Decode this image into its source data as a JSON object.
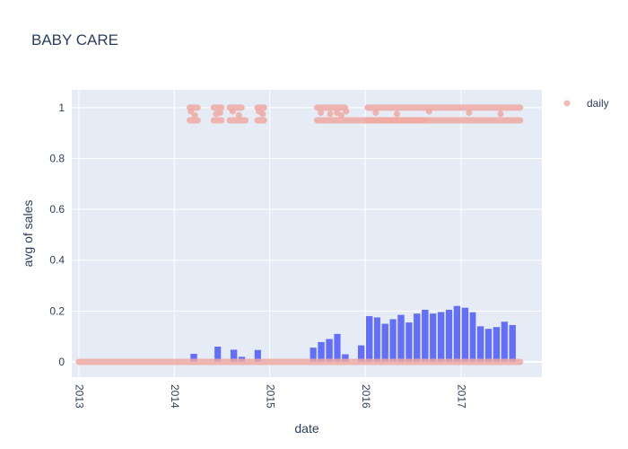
{
  "chart_data": {
    "type": "bar",
    "title": "BABY CARE",
    "xlabel": "date",
    "ylabel": "avg of sales",
    "ylim": [
      -0.06,
      1.07
    ],
    "xlim": [
      "2012-12-05",
      "2017-11-06"
    ],
    "y_ticks": [
      "0",
      "0.2",
      "0.4",
      "0.6",
      "0.8",
      "1"
    ],
    "x_ticks": [
      {
        "date": "2013-01-01",
        "label": "2013"
      },
      {
        "date": "2014-01-01",
        "label": "2014"
      },
      {
        "date": "2015-01-01",
        "label": "2015"
      },
      {
        "date": "2016-01-01",
        "label": "2016"
      },
      {
        "date": "2017-01-01",
        "label": "2017"
      }
    ],
    "legend": {
      "position": "top-right",
      "entries": [
        "daily"
      ]
    },
    "grid": true,
    "colors": {
      "bar": "#636efa",
      "scatter": "#efa9a2",
      "plot_bg": "#e5ecf6",
      "text": "#2a3f5f"
    },
    "series": [
      {
        "type": "bar",
        "x": [
          "2013-01",
          "2013-02",
          "2013-03",
          "2013-04",
          "2013-05",
          "2013-06",
          "2013-07",
          "2013-08",
          "2013-09",
          "2013-10",
          "2013-11",
          "2013-12",
          "2014-01",
          "2014-02",
          "2014-03",
          "2014-04",
          "2014-05",
          "2014-06",
          "2014-07",
          "2014-08",
          "2014-09",
          "2014-10",
          "2014-11",
          "2014-12",
          "2015-01",
          "2015-02",
          "2015-03",
          "2015-04",
          "2015-05",
          "2015-06",
          "2015-07",
          "2015-08",
          "2015-09",
          "2015-10",
          "2015-11",
          "2015-12",
          "2016-01",
          "2016-02",
          "2016-03",
          "2016-04",
          "2016-05",
          "2016-06",
          "2016-07",
          "2016-08",
          "2016-09",
          "2016-10",
          "2016-11",
          "2016-12",
          "2017-01",
          "2017-02",
          "2017-03",
          "2017-04",
          "2017-05",
          "2017-06",
          "2017-07",
          "2017-08"
        ],
        "values": [
          0,
          0,
          0,
          0,
          0,
          0,
          0,
          0,
          0,
          0,
          0,
          0,
          0,
          0,
          0.032,
          0,
          0,
          0.06,
          0,
          0.048,
          0.02,
          0,
          0.047,
          0,
          0,
          0,
          0,
          0,
          0,
          0.056,
          0.078,
          0.09,
          0.11,
          0.03,
          0,
          0.065,
          0.18,
          0.175,
          0.15,
          0.168,
          0.185,
          0.155,
          0.19,
          0.205,
          0.19,
          0.196,
          0.205,
          0.22,
          0.213,
          0.195,
          0.14,
          0.13,
          0.137,
          0.158,
          0.145,
          0
        ]
      },
      {
        "type": "scatter",
        "name": "daily",
        "segments_zero": [
          [
            "2013-01-01",
            "2017-08-15"
          ]
        ],
        "segments_095": [
          [
            "2014-03-01",
            "2014-03-31"
          ],
          [
            "2014-06-01",
            "2014-06-30"
          ],
          [
            "2014-08-01",
            "2014-09-30"
          ],
          [
            "2014-11-15",
            "2014-12-10"
          ],
          [
            "2015-07-01",
            "2016-08-15"
          ],
          [
            "2016-01-10",
            "2017-08-15"
          ]
        ],
        "segments_1": [
          [
            "2014-03-01",
            "2014-03-31"
          ],
          [
            "2014-06-01",
            "2014-06-30"
          ],
          [
            "2014-08-01",
            "2014-09-15"
          ],
          [
            "2014-11-15",
            "2014-12-10"
          ],
          [
            "2015-07-01",
            "2015-10-15"
          ],
          [
            "2016-01-10",
            "2017-08-15"
          ]
        ],
        "points_mid": [
          [
            "2014-03-05",
            0.985
          ],
          [
            "2014-03-20",
            0.97
          ],
          [
            "2014-06-10",
            0.975
          ],
          [
            "2014-06-25",
            0.98
          ],
          [
            "2014-08-12",
            0.985
          ],
          [
            "2014-09-05",
            0.97
          ],
          [
            "2014-11-20",
            0.985
          ],
          [
            "2014-12-05",
            0.975
          ],
          [
            "2015-07-15",
            0.98
          ],
          [
            "2015-08-20",
            0.975
          ],
          [
            "2015-09-15",
            0.98
          ],
          [
            "2015-10-01",
            0.97
          ],
          [
            "2015-10-20",
            0.985
          ],
          [
            "2016-02-10",
            0.98
          ],
          [
            "2016-05-01",
            0.975
          ],
          [
            "2016-09-01",
            0.985
          ],
          [
            "2017-02-01",
            0.98
          ],
          [
            "2017-06-01",
            0.975
          ]
        ]
      }
    ]
  }
}
